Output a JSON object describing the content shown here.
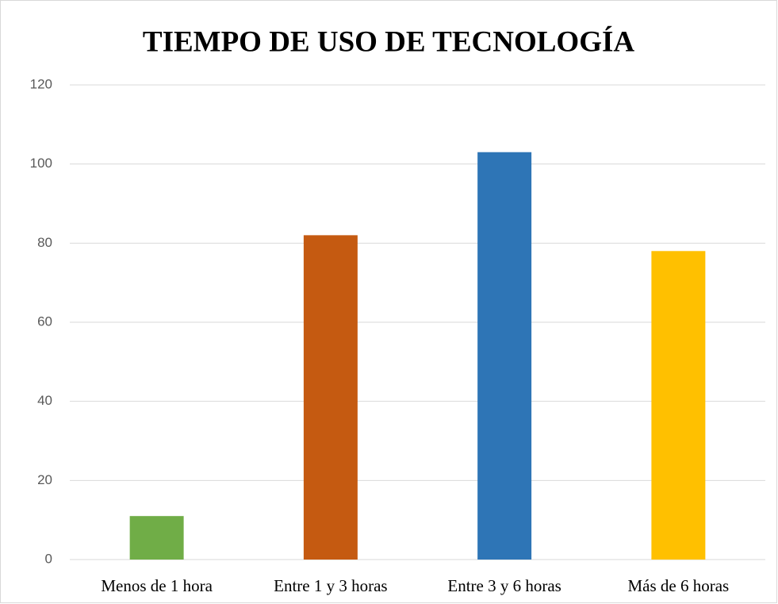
{
  "chart_data": {
    "type": "bar",
    "title": "TIEMPO DE USO DE TECNOLOGÍA",
    "categories": [
      "Menos de 1 hora",
      "Entre 1 y 3 horas",
      "Entre 3 y 6 horas",
      "Más de 6 horas"
    ],
    "values": [
      11,
      82,
      103,
      78
    ],
    "colors": [
      "#70ad47",
      "#c55a11",
      "#2e75b6",
      "#ffc000"
    ],
    "ylim": [
      0,
      120
    ],
    "yticks": [
      0,
      20,
      40,
      60,
      80,
      100,
      120
    ],
    "grid": true
  }
}
